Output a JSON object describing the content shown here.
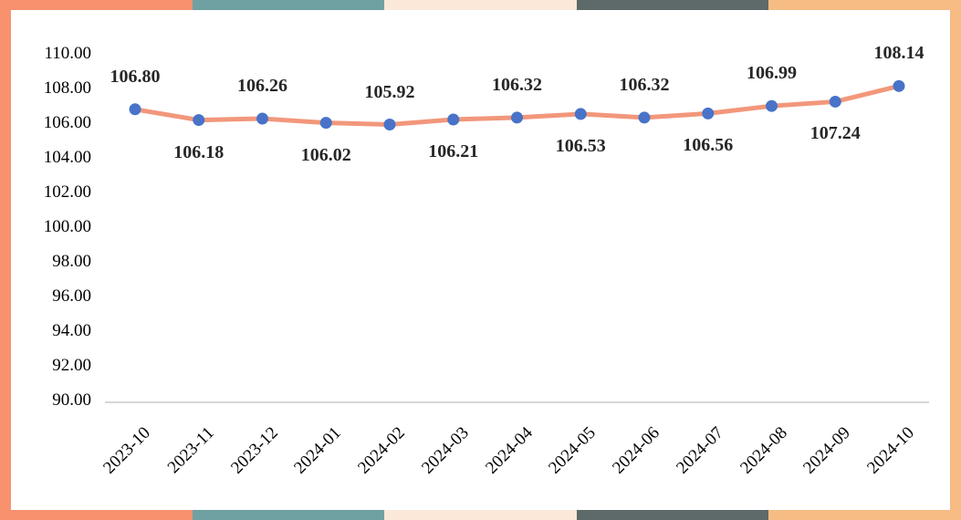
{
  "chart_data": {
    "type": "line",
    "title": "",
    "xlabel": "",
    "ylabel": "",
    "categories": [
      "2023-10",
      "2023-11",
      "2023-12",
      "2024-01",
      "2024-02",
      "2024-03",
      "2024-04",
      "2024-05",
      "2024-06",
      "2024-07",
      "2024-08",
      "2024-09",
      "2024-10"
    ],
    "series": [
      {
        "name": "index",
        "values": [
          106.8,
          106.18,
          106.26,
          106.02,
          105.92,
          106.21,
          106.32,
          106.53,
          106.32,
          106.56,
          106.99,
          107.24,
          108.14
        ],
        "data_labels": [
          "106.80",
          "106.18",
          "106.26",
          "106.02",
          "105.92",
          "106.21",
          "106.32",
          "106.53",
          "106.32",
          "106.56",
          "106.99",
          "107.24",
          "108.14"
        ],
        "label_positions": [
          "above",
          "below",
          "above",
          "below",
          "above",
          "below",
          "above",
          "below",
          "above",
          "below",
          "above",
          "below",
          "above"
        ]
      }
    ],
    "yticks": [
      "110.00",
      "108.00",
      "106.00",
      "104.00",
      "102.00",
      "100.00",
      "98.00",
      "96.00",
      "94.00",
      "92.00",
      "90.00"
    ],
    "ytick_values": [
      110,
      108,
      106,
      104,
      102,
      100,
      98,
      96,
      94,
      92,
      90
    ],
    "ylim": [
      90,
      110
    ],
    "grid": false,
    "legend": "none",
    "colors": {
      "line": "#F2977B",
      "marker": "#4873C9",
      "axis_line": "#D6D6D6",
      "data_label_text": "#262626",
      "tick_text": "#000000"
    }
  },
  "frame": {
    "segment_colors": [
      "#F8916E",
      "#6FA0A2",
      "#FBE8D8",
      "#5E696A",
      "#F6BC84"
    ],
    "left_color": "#F8916E",
    "right_color": "#F6BC84"
  }
}
